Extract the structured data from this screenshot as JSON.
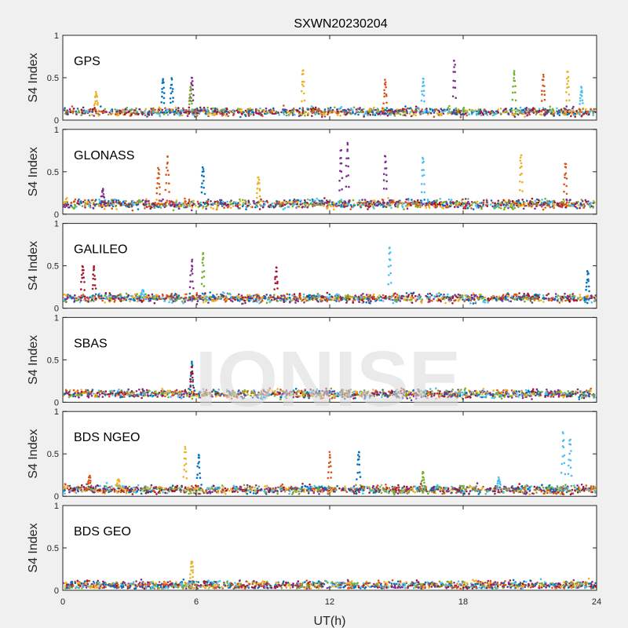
{
  "chart_data": {
    "type": "scatter",
    "title": "SXWN20230204",
    "xlabel": "UT(h)",
    "ylabel": "S4 Index",
    "xlim": [
      0,
      24
    ],
    "ylim": [
      0,
      1
    ],
    "xticks": [
      "0",
      "6",
      "12",
      "18",
      "24"
    ],
    "yticks": [
      "0",
      "0.5",
      "1"
    ],
    "watermark": "IONISE",
    "colors": [
      "#0072bd",
      "#d95319",
      "#edb120",
      "#7e2f8e",
      "#77ac30",
      "#4dbeee",
      "#a2142f"
    ],
    "panels": [
      {
        "name": "GPS",
        "baseline": 0.1,
        "spikes": [
          [
            4.5,
            0.5,
            0
          ],
          [
            4.9,
            0.5,
            0
          ],
          [
            5.8,
            0.53,
            3
          ],
          [
            5.75,
            0.4,
            4
          ],
          [
            10.8,
            0.62,
            2
          ],
          [
            14.5,
            0.48,
            1
          ],
          [
            16.2,
            0.52,
            5
          ],
          [
            17.6,
            0.75,
            3
          ],
          [
            20.3,
            0.6,
            4
          ],
          [
            21.6,
            0.55,
            1
          ],
          [
            22.7,
            0.58,
            2
          ],
          [
            23.3,
            0.4,
            5
          ],
          [
            1.5,
            0.33,
            2
          ]
        ]
      },
      {
        "name": "GLONASS",
        "baseline": 0.12,
        "spikes": [
          [
            4.3,
            0.55,
            1
          ],
          [
            4.7,
            0.7,
            1
          ],
          [
            6.3,
            0.57,
            0
          ],
          [
            12.5,
            0.78,
            3
          ],
          [
            12.8,
            0.88,
            3
          ],
          [
            14.5,
            0.72,
            3
          ],
          [
            16.2,
            0.7,
            5
          ],
          [
            20.6,
            0.72,
            2
          ],
          [
            22.6,
            0.63,
            1
          ],
          [
            8.8,
            0.45,
            2
          ],
          [
            1.8,
            0.3,
            3
          ]
        ]
      },
      {
        "name": "GALILEO",
        "baseline": 0.12,
        "spikes": [
          [
            0.9,
            0.52,
            6
          ],
          [
            1.4,
            0.5,
            6
          ],
          [
            5.8,
            0.58,
            3
          ],
          [
            6.3,
            0.68,
            4
          ],
          [
            9.6,
            0.48,
            6
          ],
          [
            14.7,
            0.76,
            5
          ],
          [
            23.6,
            0.45,
            0
          ],
          [
            3.6,
            0.22,
            5
          ]
        ]
      },
      {
        "name": "SBAS",
        "baseline": 0.1,
        "spikes": [
          [
            5.8,
            0.48,
            0
          ],
          [
            5.8,
            0.42,
            6
          ]
        ]
      },
      {
        "name": "BDS NGEO",
        "baseline": 0.08,
        "spikes": [
          [
            5.5,
            0.6,
            2
          ],
          [
            6.1,
            0.52,
            0
          ],
          [
            12.0,
            0.53,
            1
          ],
          [
            13.3,
            0.56,
            0
          ],
          [
            22.5,
            0.78,
            5
          ],
          [
            22.8,
            0.7,
            5
          ],
          [
            1.2,
            0.25,
            1
          ],
          [
            2.5,
            0.22,
            2
          ],
          [
            16.2,
            0.3,
            4
          ],
          [
            19.6,
            0.22,
            5
          ]
        ]
      },
      {
        "name": "BDS GEO",
        "baseline": 0.06,
        "spikes": [
          [
            5.8,
            0.36,
            2
          ]
        ]
      }
    ]
  }
}
